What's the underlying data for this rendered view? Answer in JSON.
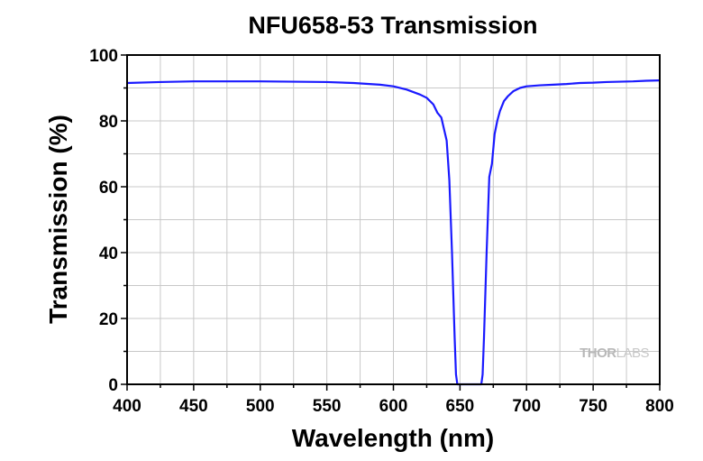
{
  "chart_data": {
    "type": "line",
    "title": "NFU658-53 Transmission",
    "xlabel": "Wavelength (nm)",
    "ylabel": "Transmission (%)",
    "xlim": [
      400,
      800
    ],
    "ylim": [
      0,
      100
    ],
    "xticks": [
      400,
      450,
      500,
      550,
      600,
      650,
      700,
      750,
      800
    ],
    "yticks": [
      0,
      20,
      40,
      60,
      80,
      100
    ],
    "grid": true,
    "legend": "none",
    "series": [
      {
        "color": "#1a1aff",
        "x": [
          400,
          425,
          450,
          500,
          550,
          570,
          590,
          600,
          610,
          620,
          625,
          630,
          633,
          636,
          638,
          640,
          642,
          644,
          646,
          647,
          648,
          650,
          660,
          666,
          667,
          668,
          670,
          672,
          674,
          676,
          678,
          680,
          683,
          686,
          690,
          695,
          700,
          710,
          720,
          730,
          740,
          750,
          760,
          770,
          780,
          790,
          800
        ],
        "y": [
          91.5,
          91.8,
          92,
          92,
          91.8,
          91.5,
          91,
          90.5,
          89.5,
          88,
          87,
          85,
          82.5,
          81,
          77.5,
          74,
          62,
          40,
          14,
          3,
          0,
          0,
          0,
          0,
          3,
          14,
          40,
          63,
          67,
          76,
          80,
          83,
          86,
          87.5,
          89,
          90,
          90.5,
          90.8,
          91,
          91.2,
          91.5,
          91.6,
          91.8,
          91.9,
          92,
          92.2,
          92.3
        ]
      }
    ]
  },
  "watermark": {
    "part1": "THOR",
    "part2": "LABS"
  }
}
